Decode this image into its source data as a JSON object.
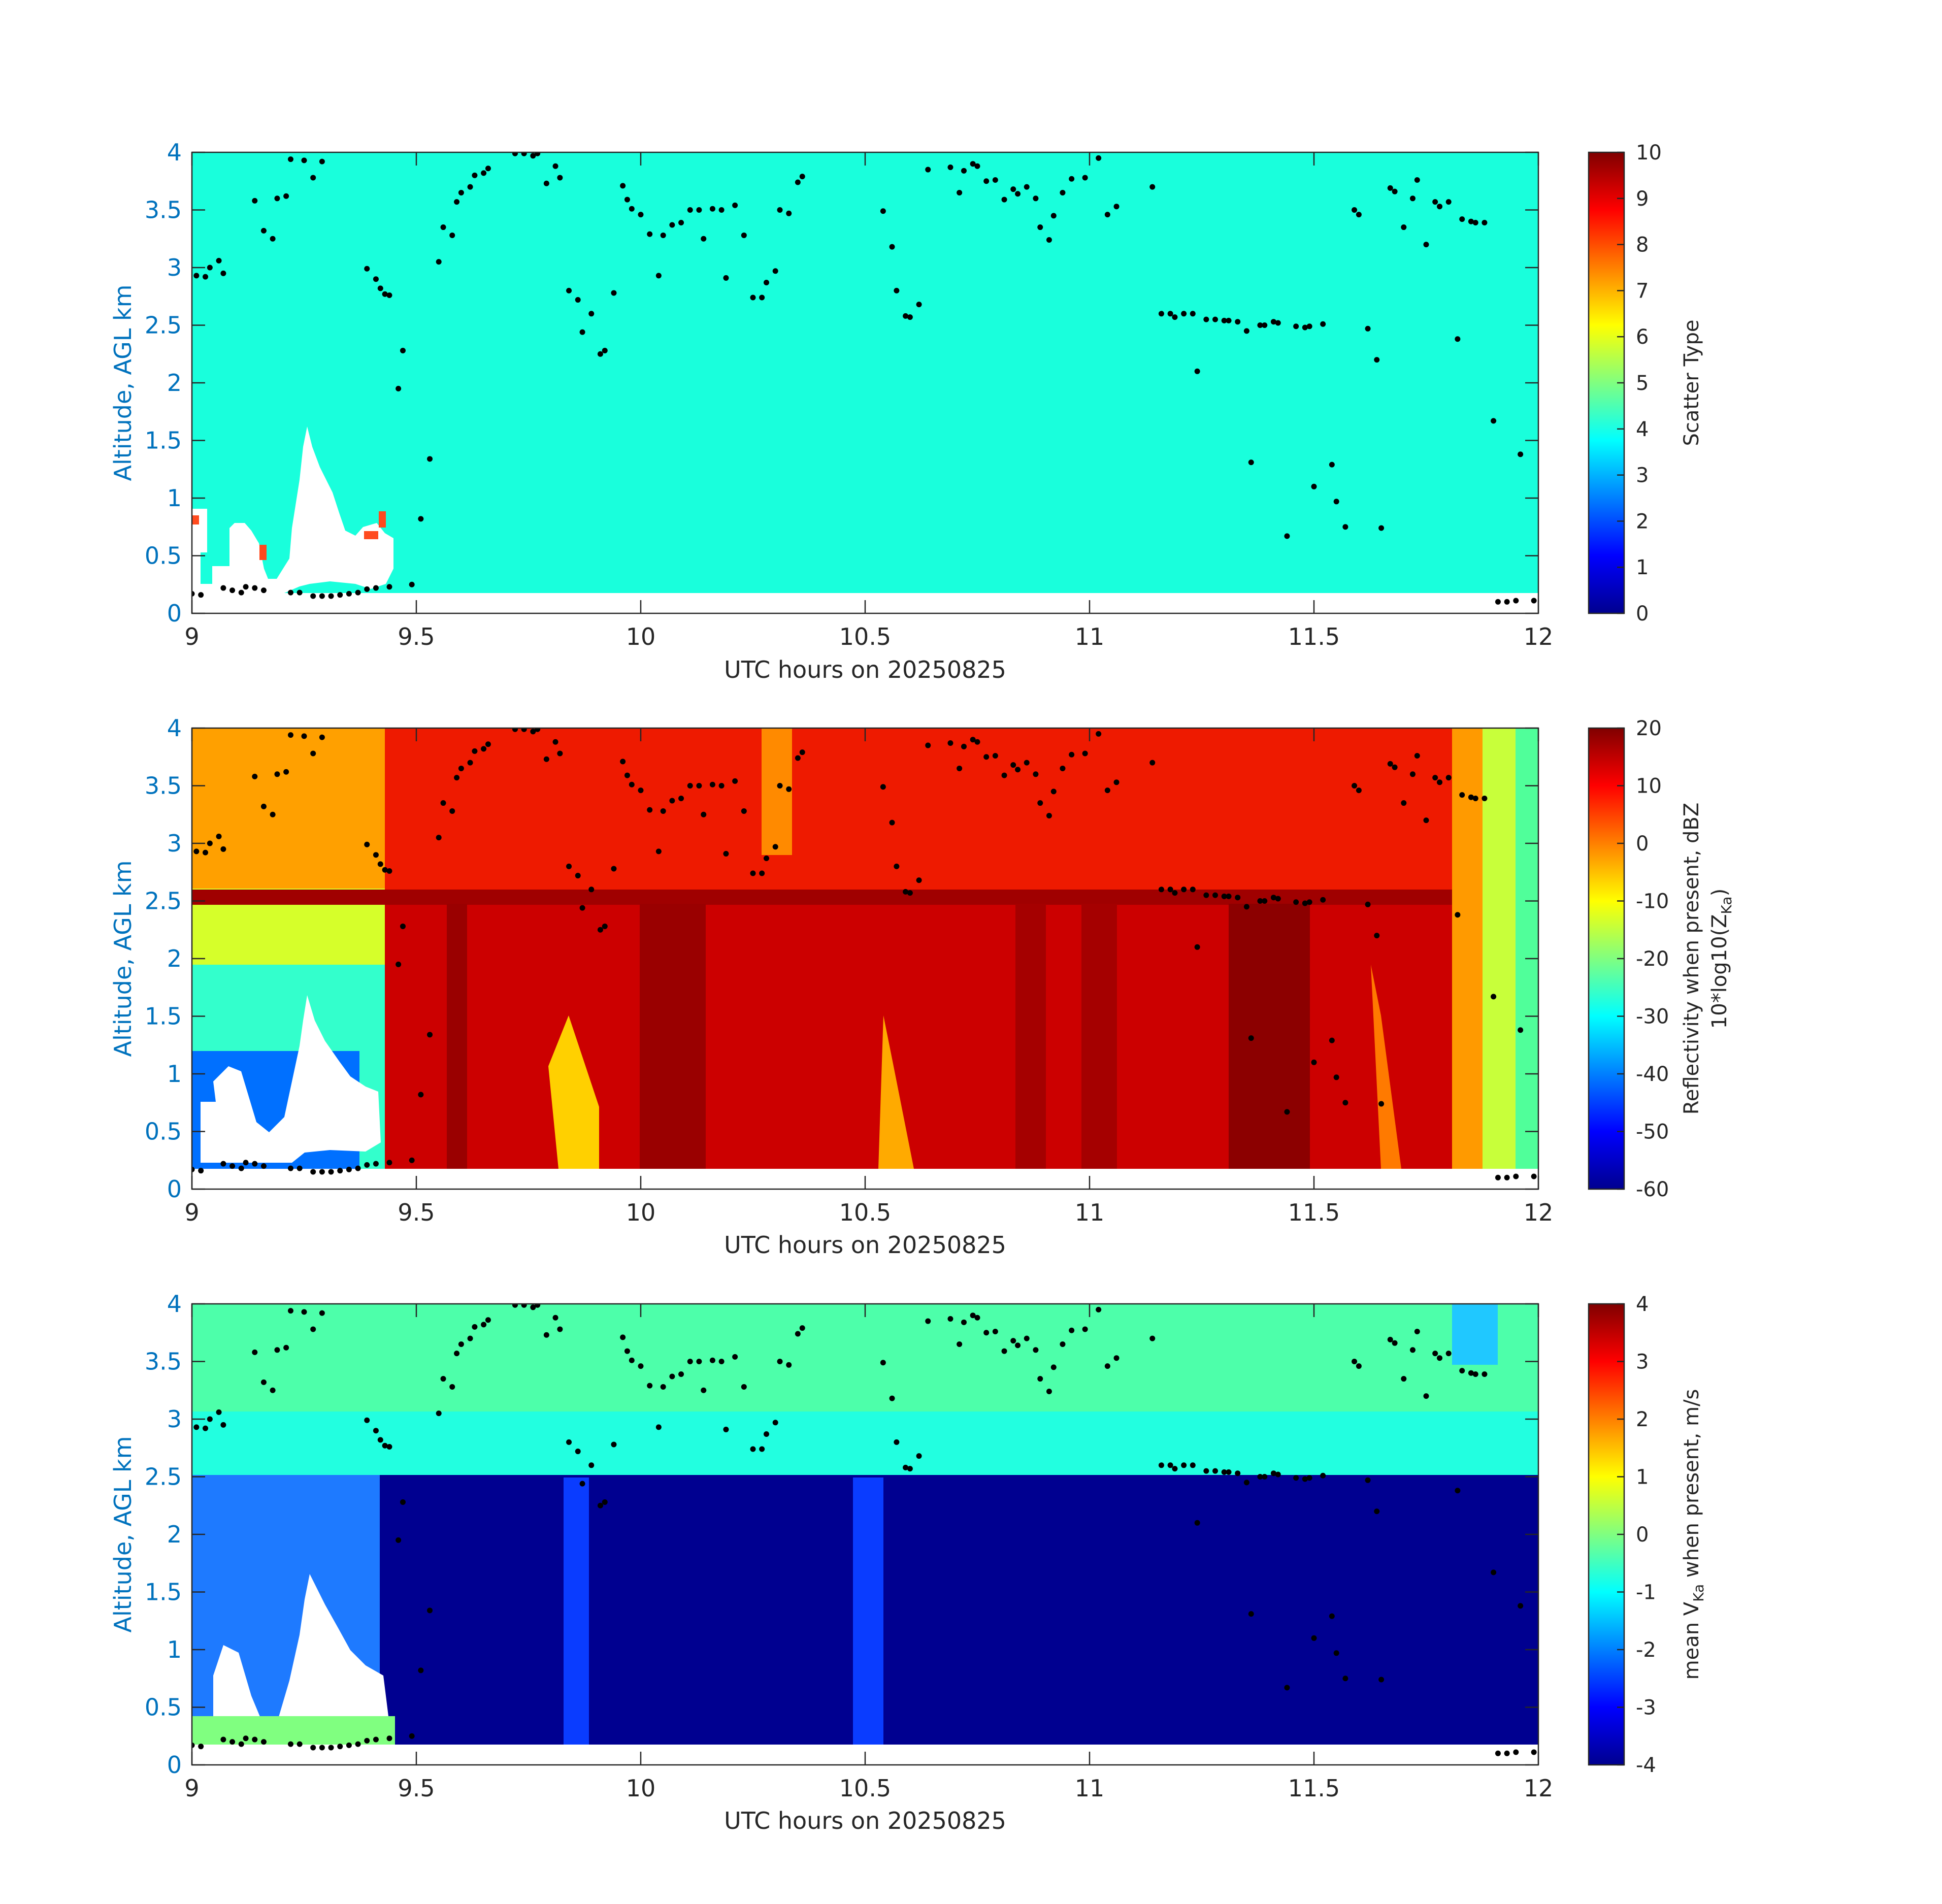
{
  "chart_data": [
    {
      "type": "heatmap",
      "panel": "scatter-type",
      "xlabel": "UTC hours on 20250825",
      "ylabel": "Altitude, AGL km",
      "xlim": [
        9,
        12
      ],
      "ylim": [
        0,
        4
      ],
      "xticks": [
        "9",
        "9.5",
        "10",
        "10.5",
        "11",
        "11.5",
        "12"
      ],
      "yticks": [
        "0",
        "0.5",
        "1",
        "1.5",
        "2",
        "2.5",
        "3",
        "3.5",
        "4"
      ],
      "colorbar": {
        "label": "Scatter Type",
        "range": [
          0,
          10
        ],
        "ticks": [
          "0",
          "1",
          "2",
          "3",
          "4",
          "5",
          "6",
          "7",
          "8",
          "9",
          "10"
        ],
        "colormap": "jet"
      },
      "dominant_value": 3.7,
      "fill_color": "#19ffdc"
    },
    {
      "type": "heatmap",
      "panel": "reflectivity",
      "xlabel": "UTC hours on 20250825",
      "ylabel": "Altitude, AGL km",
      "xlim": [
        9,
        12
      ],
      "ylim": [
        0,
        4
      ],
      "xticks": [
        "9",
        "9.5",
        "10",
        "10.5",
        "11",
        "11.5",
        "12"
      ],
      "yticks": [
        "0",
        "0.5",
        "1",
        "1.5",
        "2",
        "2.5",
        "3",
        "3.5",
        "4"
      ],
      "colorbar": {
        "label_line1": "Reflectivity when present, dBZ",
        "label_line2_main": "10*log10(Z",
        "label_line2_sub": "Ka",
        "label_line2_end": ")",
        "range": [
          -60,
          20
        ],
        "ticks": [
          "-60",
          "-50",
          "-40",
          "-30",
          "-20",
          "-10",
          "0",
          "10",
          "20"
        ],
        "colormap": "jet"
      },
      "bright_band_altitude_km": 2.5
    },
    {
      "type": "heatmap",
      "panel": "doppler-velocity",
      "xlabel": "UTC hours on 20250825",
      "ylabel": "Altitude, AGL km",
      "xlim": [
        9,
        12
      ],
      "ylim": [
        0,
        4
      ],
      "xticks": [
        "9",
        "9.5",
        "10",
        "10.5",
        "11",
        "11.5",
        "12"
      ],
      "yticks": [
        "0",
        "0.5",
        "1",
        "1.5",
        "2",
        "2.5",
        "3",
        "3.5",
        "4"
      ],
      "colorbar": {
        "label_main": "mean V",
        "label_sub": "Ka",
        "label_end": " when present, m/s",
        "range": [
          -4,
          4
        ],
        "ticks": [
          "-4",
          "-3",
          "-2",
          "-1",
          "0",
          "1",
          "2",
          "3",
          "4"
        ],
        "colormap": "jet"
      },
      "melting_level_km": 2.45,
      "value_above_melting": -1.2,
      "value_below_melting": -4
    }
  ],
  "cloud_base_points": [
    [
      9.01,
      2.93
    ],
    [
      9.03,
      2.92
    ],
    [
      9.04,
      3.0
    ],
    [
      9.06,
      3.06
    ],
    [
      9.07,
      2.95
    ],
    [
      9.14,
      3.58
    ],
    [
      9.16,
      3.32
    ],
    [
      9.18,
      3.25
    ],
    [
      9.19,
      3.6
    ],
    [
      9.21,
      3.62
    ],
    [
      9.22,
      3.94
    ],
    [
      9.25,
      3.93
    ],
    [
      9.27,
      3.78
    ],
    [
      9.29,
      3.92
    ],
    [
      9.39,
      2.99
    ],
    [
      9.41,
      2.9
    ],
    [
      9.42,
      2.82
    ],
    [
      9.43,
      2.77
    ],
    [
      9.44,
      2.76
    ],
    [
      9.46,
      1.95
    ],
    [
      9.47,
      2.28
    ],
    [
      9.51,
      0.82
    ],
    [
      9.53,
      1.34
    ],
    [
      9.55,
      3.05
    ],
    [
      9.56,
      3.35
    ],
    [
      9.58,
      3.28
    ],
    [
      9.59,
      3.57
    ],
    [
      9.6,
      3.65
    ],
    [
      9.62,
      3.7
    ],
    [
      9.63,
      3.8
    ],
    [
      9.65,
      3.82
    ],
    [
      9.66,
      3.86
    ],
    [
      9.72,
      3.99
    ],
    [
      9.74,
      3.99
    ],
    [
      9.76,
      3.97
    ],
    [
      9.77,
      3.99
    ],
    [
      9.79,
      3.73
    ],
    [
      9.81,
      3.88
    ],
    [
      9.82,
      3.78
    ],
    [
      9.84,
      2.8
    ],
    [
      9.86,
      2.72
    ],
    [
      9.87,
      2.44
    ],
    [
      9.89,
      2.6
    ],
    [
      9.91,
      2.25
    ],
    [
      9.92,
      2.28
    ],
    [
      9.94,
      2.78
    ],
    [
      9.96,
      3.71
    ],
    [
      9.97,
      3.59
    ],
    [
      9.98,
      3.51
    ],
    [
      10.0,
      3.46
    ],
    [
      10.02,
      3.29
    ],
    [
      10.04,
      2.93
    ],
    [
      10.05,
      3.28
    ],
    [
      10.07,
      3.37
    ],
    [
      10.09,
      3.39
    ],
    [
      10.11,
      3.5
    ],
    [
      10.13,
      3.5
    ],
    [
      10.14,
      3.25
    ],
    [
      10.16,
      3.51
    ],
    [
      10.18,
      3.5
    ],
    [
      10.19,
      2.91
    ],
    [
      10.21,
      3.54
    ],
    [
      10.23,
      3.28
    ],
    [
      10.25,
      2.74
    ],
    [
      10.27,
      2.74
    ],
    [
      10.28,
      2.87
    ],
    [
      10.3,
      2.97
    ],
    [
      10.31,
      3.5
    ],
    [
      10.33,
      3.47
    ],
    [
      10.35,
      3.74
    ],
    [
      10.36,
      3.79
    ],
    [
      10.54,
      3.49
    ],
    [
      10.56,
      3.18
    ],
    [
      10.57,
      2.8
    ],
    [
      10.59,
      2.58
    ],
    [
      10.6,
      2.57
    ],
    [
      10.62,
      2.68
    ],
    [
      10.64,
      3.85
    ],
    [
      10.69,
      3.87
    ],
    [
      10.71,
      3.65
    ],
    [
      10.72,
      3.84
    ],
    [
      10.74,
      3.9
    ],
    [
      10.75,
      3.88
    ],
    [
      10.77,
      3.75
    ],
    [
      10.79,
      3.76
    ],
    [
      10.81,
      3.59
    ],
    [
      10.83,
      3.68
    ],
    [
      10.84,
      3.64
    ],
    [
      10.86,
      3.7
    ],
    [
      10.88,
      3.6
    ],
    [
      10.89,
      3.35
    ],
    [
      10.91,
      3.24
    ],
    [
      10.92,
      3.45
    ],
    [
      10.94,
      3.65
    ],
    [
      10.96,
      3.77
    ],
    [
      10.99,
      3.78
    ],
    [
      11.02,
      3.95
    ],
    [
      11.04,
      3.46
    ],
    [
      11.06,
      3.53
    ],
    [
      11.14,
      3.7
    ],
    [
      11.16,
      2.6
    ],
    [
      11.18,
      2.6
    ],
    [
      11.19,
      2.57
    ],
    [
      11.21,
      2.6
    ],
    [
      11.23,
      2.6
    ],
    [
      11.24,
      2.1
    ],
    [
      11.26,
      2.55
    ],
    [
      11.28,
      2.55
    ],
    [
      11.3,
      2.54
    ],
    [
      11.31,
      2.54
    ],
    [
      11.33,
      2.53
    ],
    [
      11.35,
      2.45
    ],
    [
      11.36,
      1.31
    ],
    [
      11.38,
      2.5
    ],
    [
      11.39,
      2.5
    ],
    [
      11.41,
      2.53
    ],
    [
      11.42,
      2.52
    ],
    [
      11.44,
      0.67
    ],
    [
      11.46,
      2.49
    ],
    [
      11.48,
      2.48
    ],
    [
      11.49,
      2.49
    ],
    [
      11.5,
      1.1
    ],
    [
      11.52,
      2.51
    ],
    [
      11.54,
      1.29
    ],
    [
      11.55,
      0.97
    ],
    [
      11.57,
      0.75
    ],
    [
      11.59,
      3.5
    ],
    [
      11.6,
      3.46
    ],
    [
      11.62,
      2.47
    ],
    [
      11.64,
      2.2
    ],
    [
      11.65,
      0.74
    ],
    [
      11.67,
      3.69
    ],
    [
      11.68,
      3.66
    ],
    [
      11.7,
      3.35
    ],
    [
      11.72,
      3.6
    ],
    [
      11.73,
      3.76
    ],
    [
      11.75,
      3.2
    ],
    [
      11.77,
      3.57
    ],
    [
      11.78,
      3.53
    ],
    [
      11.8,
      3.57
    ],
    [
      11.82,
      2.38
    ],
    [
      11.83,
      3.42
    ],
    [
      11.85,
      3.4
    ],
    [
      11.86,
      3.39
    ],
    [
      11.88,
      3.39
    ],
    [
      11.9,
      1.67
    ],
    [
      11.96,
      1.38
    ],
    [
      9.0,
      0.17
    ],
    [
      9.02,
      0.16
    ],
    [
      9.07,
      0.22
    ],
    [
      9.09,
      0.2
    ],
    [
      9.11,
      0.18
    ],
    [
      9.12,
      0.23
    ],
    [
      9.14,
      0.22
    ],
    [
      9.16,
      0.2
    ],
    [
      9.22,
      0.18
    ],
    [
      9.24,
      0.18
    ],
    [
      9.27,
      0.15
    ],
    [
      9.29,
      0.15
    ],
    [
      9.31,
      0.15
    ],
    [
      9.33,
      0.16
    ],
    [
      9.35,
      0.17
    ],
    [
      9.37,
      0.18
    ],
    [
      9.39,
      0.21
    ],
    [
      9.41,
      0.22
    ],
    [
      9.44,
      0.23
    ],
    [
      9.49,
      0.25
    ],
    [
      11.91,
      0.1
    ],
    [
      11.93,
      0.1
    ],
    [
      11.95,
      0.11
    ],
    [
      11.99,
      0.11
    ]
  ]
}
